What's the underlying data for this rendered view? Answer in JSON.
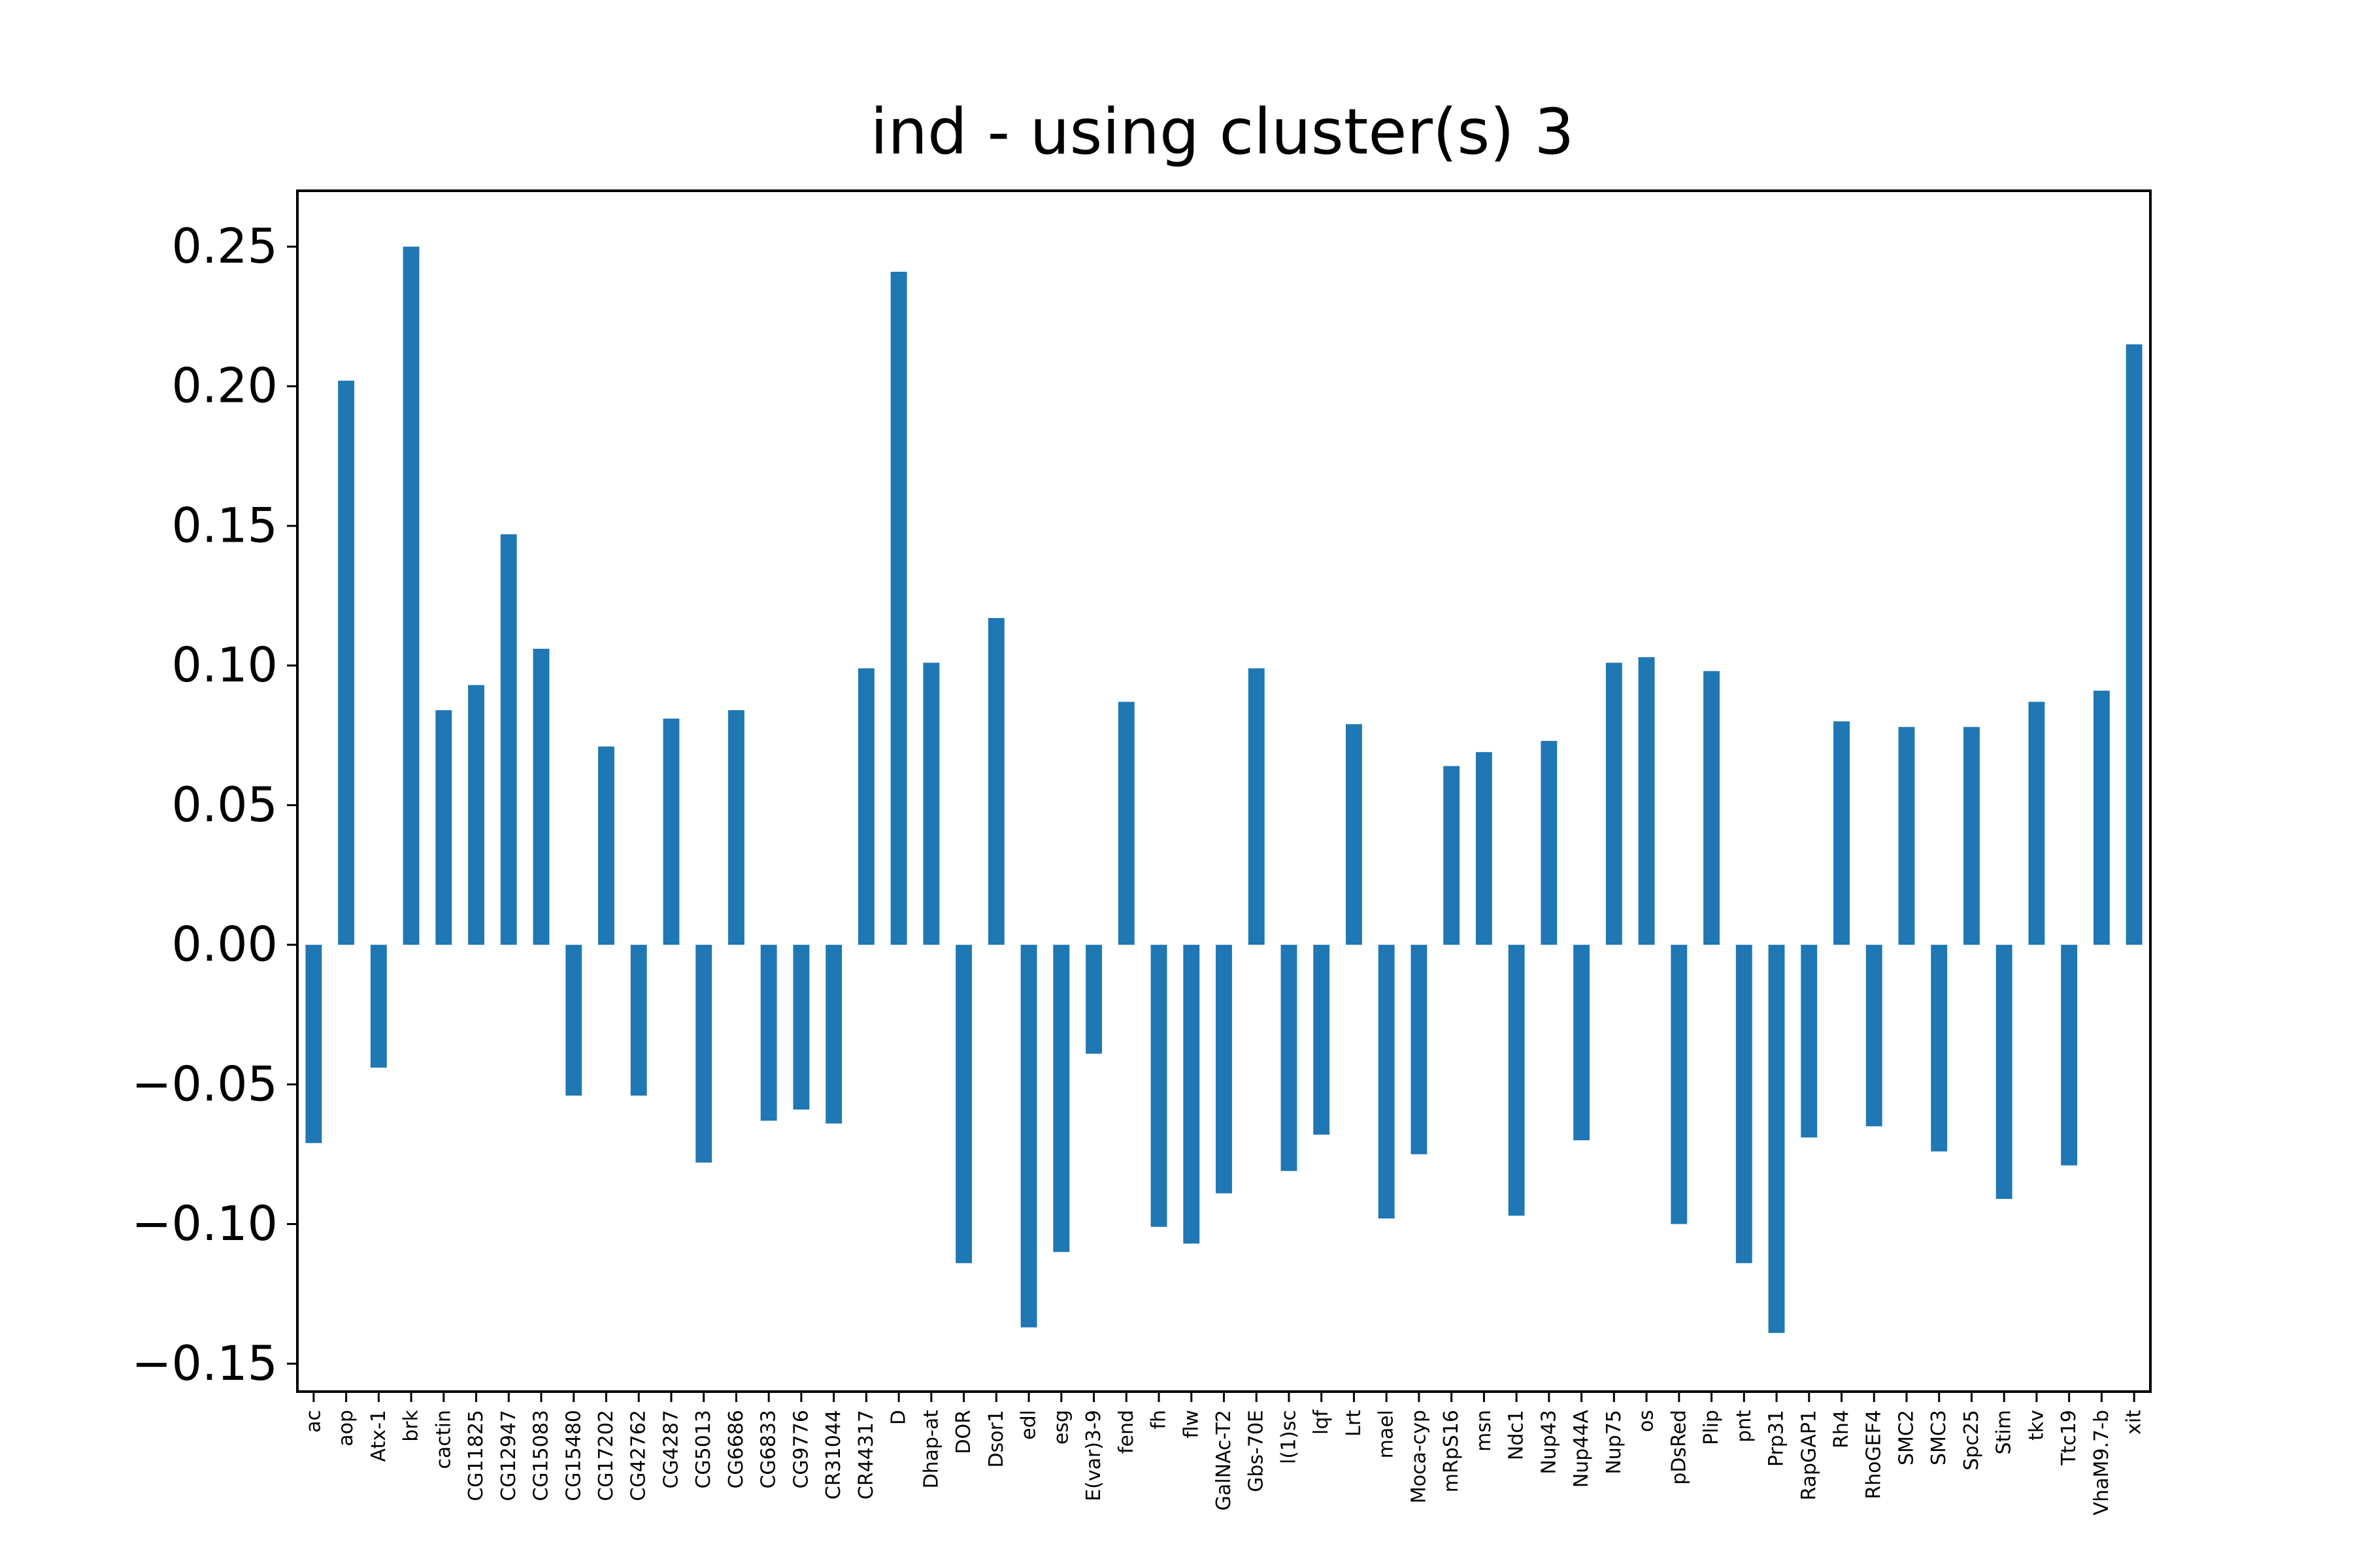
{
  "chart_data": {
    "type": "bar",
    "title": "ind - using cluster(s) 3",
    "xlabel": "",
    "ylabel": "",
    "ylim": [
      -0.16,
      0.27
    ],
    "yticks": [
      -0.15,
      -0.1,
      -0.05,
      0.0,
      0.05,
      0.1,
      0.15,
      0.2,
      0.25
    ],
    "ytick_labels": [
      "−0.15",
      "−0.10",
      "−0.05",
      "0.00",
      "0.05",
      "0.10",
      "0.15",
      "0.20",
      "0.25"
    ],
    "grid": false,
    "bar_color": "#1f77b4",
    "categories": [
      "ac",
      "aop",
      "Atx-1",
      "brk",
      "cactin",
      "CG11825",
      "CG12947",
      "CG15083",
      "CG15480",
      "CG17202",
      "CG42762",
      "CG4287",
      "CG5013",
      "CG6686",
      "CG6833",
      "CG9776",
      "CR31044",
      "CR44317",
      "D",
      "Dhap-at",
      "DOR",
      "Dsor1",
      "edl",
      "esg",
      "E(var)3-9",
      "fend",
      "fh",
      "flw",
      "GalNAc-T2",
      "Gbs-70E",
      "l(1)sc",
      "lqf",
      "Lrt",
      "mael",
      "Moca-cyp",
      "mRpS16",
      "msn",
      "Ndc1",
      "Nup43",
      "Nup44A",
      "Nup75",
      "os",
      "pDsRed",
      "Plip",
      "pnt",
      "Prp31",
      "RapGAP1",
      "Rh4",
      "RhoGEF4",
      "SMC2",
      "SMC3",
      "Spc25",
      "Stim",
      "tkv",
      "Ttc19",
      "VhaM9.7-b",
      "xit"
    ],
    "values": [
      -0.071,
      0.202,
      -0.044,
      0.25,
      0.084,
      0.093,
      0.147,
      0.106,
      -0.054,
      0.071,
      -0.054,
      0.081,
      -0.078,
      0.084,
      -0.063,
      -0.059,
      -0.064,
      0.099,
      0.241,
      0.101,
      -0.114,
      0.117,
      -0.137,
      -0.11,
      -0.039,
      0.087,
      -0.101,
      -0.107,
      -0.089,
      0.099,
      -0.081,
      -0.068,
      0.079,
      -0.098,
      -0.075,
      0.064,
      0.069,
      -0.097,
      0.073,
      -0.07,
      0.101,
      0.103,
      -0.1,
      0.098,
      -0.114,
      -0.139,
      -0.069,
      0.08,
      -0.065,
      0.078,
      -0.074,
      0.078,
      -0.091,
      0.087,
      -0.079,
      0.091,
      0.215
    ]
  }
}
